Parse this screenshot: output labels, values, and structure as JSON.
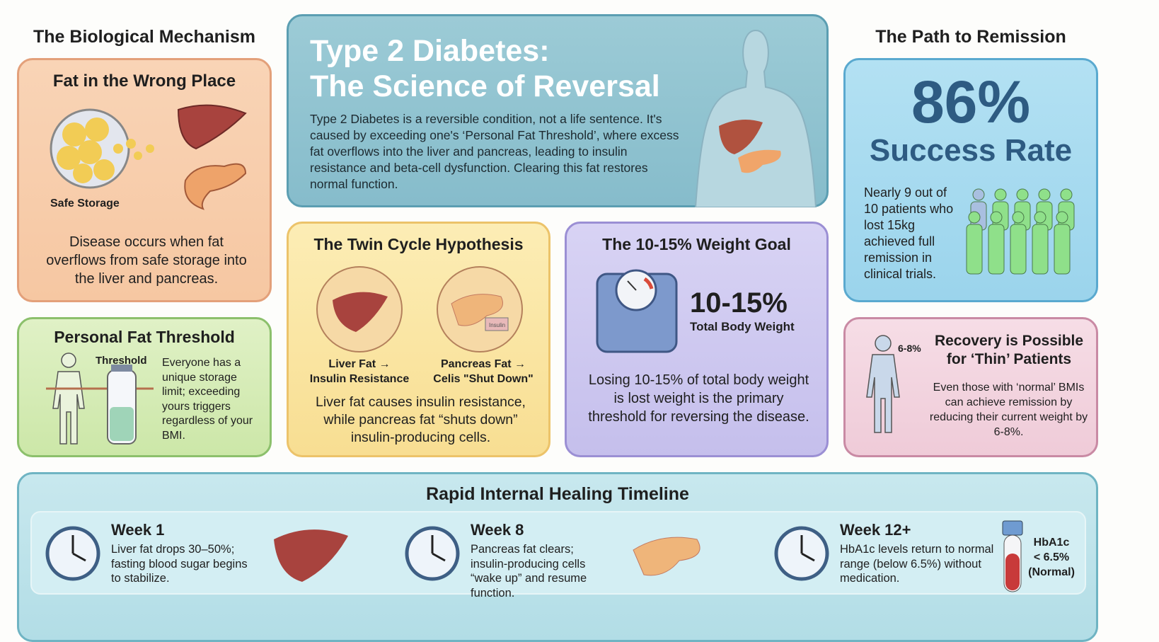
{
  "left_heading": "The Biological Mechanism",
  "right_heading": "The Path to Remission",
  "hero": {
    "title_line1": "Type 2 Diabetes:",
    "title_line2": "The Science of Reversal",
    "body": "Type 2 Diabetes is a reversible condition, not a life sentence. It's caused by exceeding one's ‘Personal Fat Threshold’, where excess fat overflows into the liver and pancreas, leading to insulin resistance and beta-cell dysfunction. Clearing this fat restores normal function."
  },
  "fat_panel": {
    "title": "Fat in the Wrong Place",
    "storage_label": "Safe Storage",
    "body": "Disease occurs when fat overflows from safe storage into the liver and pancreas."
  },
  "threshold_panel": {
    "title": "Personal Fat Threshold",
    "threshold_label": "Threshold",
    "body": "Everyone has a unique storage limit; exceeding yours triggers regardless of your BMI."
  },
  "twin_panel": {
    "title": "The Twin Cycle Hypothesis",
    "insulin_label": "Insulin",
    "liver_caption": "Liver Fat →\nInsulin Resistance",
    "pancreas_caption": "Pancreas Fat →\nCelis \"Shut Down\"",
    "body": "Liver fat causes insulin resistance, while pancreas fat “shuts down” insulin-producing cells."
  },
  "weight_panel": {
    "title": "The 10-15% Weight Goal",
    "big": "10-15%",
    "sub": "Total Body Weight",
    "body": "Losing 10-15% of total body weight is lost weight is the primary threshold for reversing the disease."
  },
  "success_panel": {
    "percent": "86%",
    "label": "Success Rate",
    "body": "Nearly 9 out of 10 patients who lost 15kg achieved full remission in clinical trials.",
    "people_total": 10,
    "people_highlighted": 9
  },
  "recovery_panel": {
    "badge": "6-8%",
    "title": "Recovery is Possible for ‘Thin’ Patients",
    "body": "Even those with ‘normal’ BMIs can achieve remission by reducing their current weight by 6-8%."
  },
  "timeline": {
    "title": "Rapid Internal Healing Timeline",
    "steps": [
      {
        "week": "Week 1",
        "text": "Liver fat drops 30–50%; fasting blood sugar begins to stabilize."
      },
      {
        "week": "Week 8",
        "text": "Pancreas fat clears; insulin-producing cells “wake up” and resume function."
      },
      {
        "week": "Week 12+",
        "text": "HbA1c levels return to normal range (below 6.5%) without medication."
      }
    ],
    "hba1c_label": "HbA1c\n< 6.5%\n(Normal)"
  },
  "colors": {
    "hero": "#8fc3d0",
    "fat": "#f7cba8",
    "threshold": "#d7ecb8",
    "twin": "#fbe7a4",
    "weight": "#cfcaf0",
    "success": "#a8dcf0",
    "recovery": "#f3d3df",
    "timeline": "#bfe3ea"
  }
}
